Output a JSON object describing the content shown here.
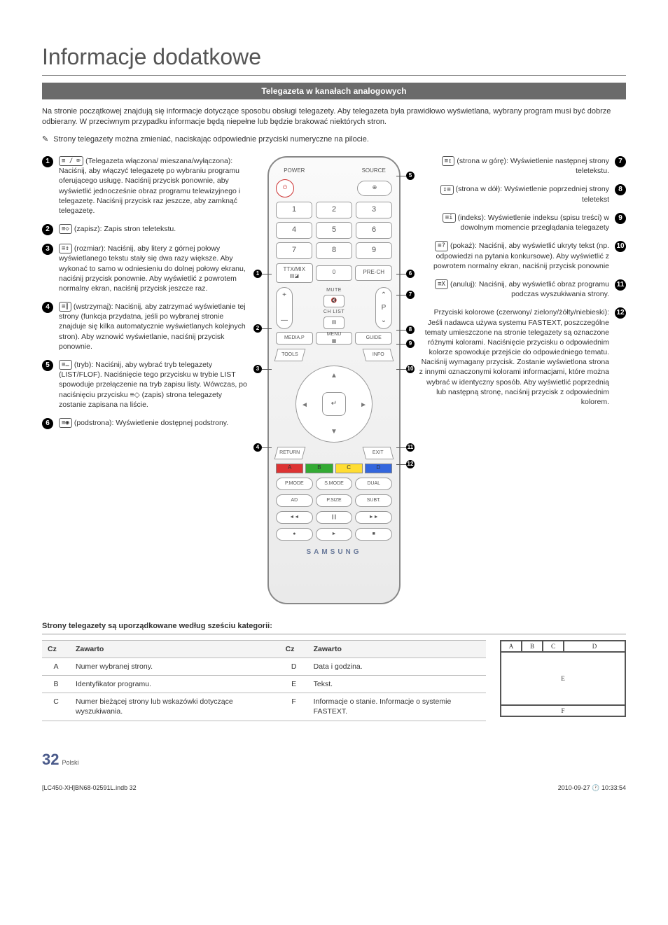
{
  "title": "Informacje dodatkowe",
  "banner": "Telegazeta w kanałach analogowych",
  "intro": "Na stronie początkowej znajdują się informacje dotyczące sposobu obsługi telegazety. Aby telegazeta była prawidłowo wyświetlana, wybrany program musi być dobrze odbierany. W przeciwnym przypadku informacje będą niepełne lub będzie brakować niektórych stron.",
  "note": "Strony telegazety można zmieniać, naciskając odpowiednie przyciski numeryczne na pilocie.",
  "left_items": [
    {
      "n": "1",
      "icon": "≡ / ⌦",
      "label": "(Telegazeta włączona/ mieszana/wyłączona):",
      "text": "Naciśnij, aby włączyć telegazetę po wybraniu programu oferującego usługę. Naciśnij przycisk ponownie, aby wyświetlić jednocześnie obraz programu telewizyjnego i telegazetę. Naciśnij przycisk raz jeszcze, aby zamknąć telegazetę."
    },
    {
      "n": "2",
      "icon": "≡◇",
      "label": "(zapisz):",
      "text": "Zapis stron teletekstu."
    },
    {
      "n": "3",
      "icon": "≡↕",
      "label": "(rozmiar):",
      "text": "Naciśnij, aby litery z górnej połowy wyświetlanego tekstu stały się dwa razy większe. Aby wykonać to samo w odniesieniu do dolnej połowy ekranu, naciśnij przycisk ponownie. Aby wyświetlić z powrotem normalny ekran, naciśnij przycisk jeszcze raz."
    },
    {
      "n": "4",
      "icon": "≡∥",
      "label": "(wstrzymaj):",
      "text": "Naciśnij, aby zatrzymać wyświetlanie tej strony (funkcja przydatna, jeśli po wybranej stronie znajduje się kilka automatycznie wyświetlanych kolejnych stron). Aby wznowić wyświetlanie, naciśnij przycisk ponownie."
    },
    {
      "n": "5",
      "icon": "≡…",
      "label": "(tryb):",
      "text": "Naciśnij, aby wybrać tryb telegazety (LIST/FLOF). Naciśnięcie tego przycisku w trybie LIST spowoduje przełączenie na tryb zapisu listy. Wówczas, po naciśnięciu przycisku ≡◇ (zapis) strona telegazety zostanie zapisana na liście."
    },
    {
      "n": "6",
      "icon": "≡◉",
      "label": "(podstrona):",
      "text": "Wyświetlenie dostępnej podstrony."
    }
  ],
  "right_items": [
    {
      "n": "7",
      "icon": "≡↥",
      "label": "(strona w górę):",
      "text": "Wyświetlenie następnej strony teletekstu."
    },
    {
      "n": "8",
      "icon": "↧≡",
      "label": "(strona w dół):",
      "text": "Wyświetlenie poprzedniej strony teletekst"
    },
    {
      "n": "9",
      "icon": "≡i",
      "label": "(indeks):",
      "text": "Wyświetlenie indeksu (spisu treści) w dowolnym momencie przeglądania telegazety"
    },
    {
      "n": "10",
      "icon": "≡?",
      "label": "(pokaż):",
      "text": "Naciśnij, aby wyświetlić ukryty tekst (np. odpowiedzi na pytania konkursowe). Aby wyświetlić z powrotem normalny ekran, naciśnij przycisk ponownie"
    },
    {
      "n": "11",
      "icon": "≡X",
      "label": "(anuluj):",
      "text": "Naciśnij, aby wyświetlić obraz programu podczas wyszukiwania strony."
    },
    {
      "n": "12",
      "icon": "",
      "label": "Przyciski kolorowe (czerwony/ zielony/żółty/niebieski):",
      "text": "Jeśli nadawca używa systemu FASTEXT, poszczególne tematy umieszczone na stronie telegazety są oznaczone różnymi kolorami. Naciśnięcie przycisku o odpowiednim kolorze spowoduje przejście do odpowiedniego tematu. Naciśnij wymagany przycisk. Zostanie wyświetlona strona z innymi oznaczonymi kolorami informacjami, które można wybrać w identyczny sposób. Aby wyświetlić poprzednią lub następną stronę, naciśnij przycisk z odpowiednim kolorem."
    }
  ],
  "remote": {
    "power": "POWER",
    "source": "SOURCE",
    "nums": [
      "1",
      "2",
      "3",
      "4",
      "5",
      "6",
      "7",
      "8",
      "9"
    ],
    "ttxmix": "TTX/MIX",
    "zero": "0",
    "prech": "PRE-CH",
    "mute": "MUTE",
    "chlist": "CH LIST",
    "p": "P",
    "mediap": "MEDIA.P",
    "menu": "MENU",
    "guide": "GUIDE",
    "tools": "TOOLS",
    "info": "INFO",
    "enter": "↵",
    "return": "RETURN",
    "exit": "EXIT",
    "colors": [
      "A",
      "B",
      "C",
      "D"
    ],
    "row1": [
      "P.MODE",
      "S.MODE",
      "DUAL"
    ],
    "row2": [
      "AD",
      "P.SIZE",
      "SUBT."
    ],
    "transport1": [
      "◄◄",
      "∥∥",
      "►►"
    ],
    "transport2": [
      "●",
      "►",
      "■"
    ],
    "brand": "SAMSUNG"
  },
  "sub_heading": "Strony telegazety są uporządkowane według sześciu kategorii:",
  "table": {
    "headers": [
      "Cz",
      "Zawarto",
      "Cz",
      "Zawarto"
    ],
    "rows": [
      [
        "A",
        "Numer wybranej strony.",
        "D",
        "Data i godzina."
      ],
      [
        "B",
        "Identyfikator programu.",
        "E",
        "Tekst."
      ],
      [
        "C",
        "Numer bieżącej strony lub wskazówki dotyczące wyszukiwania.",
        "F",
        "Informacje o stanie. Informacje o systemie FASTEXT."
      ]
    ]
  },
  "layout_labels": [
    "A",
    "B",
    "C",
    "D",
    "E",
    "F"
  ],
  "footer": {
    "left": "[LC450-XH]BN68-02591L.indb   32",
    "pagenum": "32",
    "pagelang": "Polski",
    "right": "2010-09-27   🕐 10:33:54"
  }
}
